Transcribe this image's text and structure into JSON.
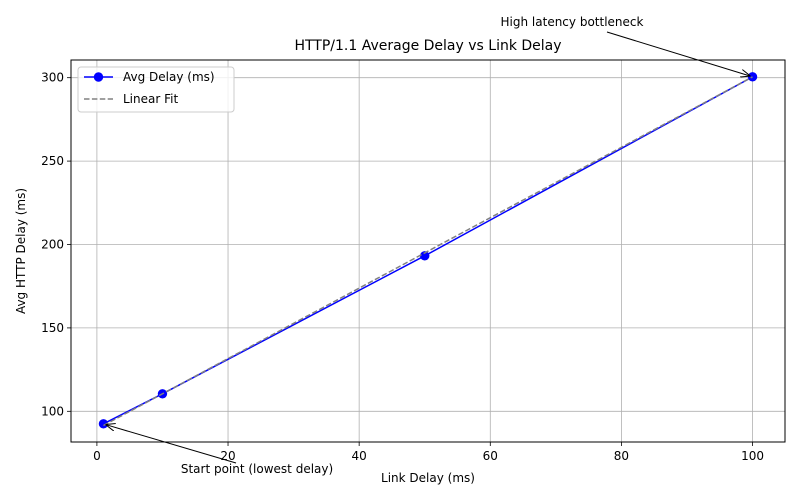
{
  "chart_data": {
    "type": "line",
    "title": "HTTP/1.1 Average Delay vs Link Delay",
    "xlabel": "Link Delay (ms)",
    "ylabel": "Avg HTTP Delay (ms)",
    "xlim": [
      -3.95,
      104.95
    ],
    "ylim": [
      81.6,
      310.6
    ],
    "xticks": [
      0,
      20,
      40,
      60,
      80,
      100
    ],
    "yticks": [
      100,
      150,
      200,
      250,
      300
    ],
    "grid": true,
    "legend_position": "top-left",
    "series": [
      {
        "name": "Avg Delay (ms)",
        "color": "#0000ff",
        "style": "solid-with-circle-markers",
        "x": [
          1,
          10,
          50,
          100
        ],
        "y": [
          92.5,
          110.5,
          193.2,
          300.5
        ]
      },
      {
        "name": "Linear Fit",
        "color": "#808080",
        "style": "dashed",
        "x": [
          1,
          100
        ],
        "y": [
          91.5,
          300.5
        ]
      }
    ],
    "annotations": [
      {
        "text": "Start point (lowest delay)",
        "x": 1,
        "y": 92.5
      },
      {
        "text": "High latency bottleneck",
        "x": 100,
        "y": 300.5
      }
    ]
  }
}
